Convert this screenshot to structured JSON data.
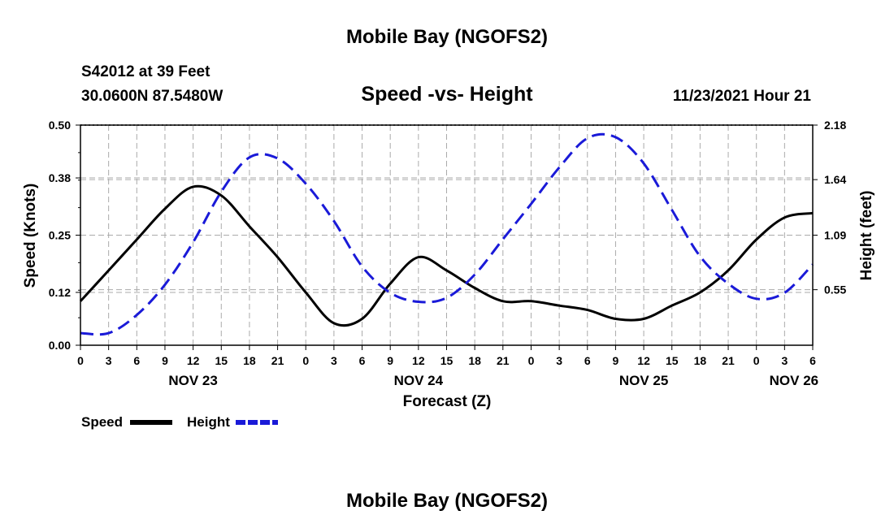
{
  "page": {
    "top_title": "Mobile Bay (NGOFS2)",
    "bottom_title": "Mobile Bay (NGOFS2)",
    "station": "S42012 at 39 Feet",
    "coords": "30.0600N  87.5480W",
    "timestamp": "11/23/2021 Hour 21"
  },
  "colors": {
    "speed": "#000000",
    "height": "#1a1ad8",
    "grid": "#aaaaaa"
  },
  "chart_data": {
    "type": "line",
    "title": "Speed -vs- Height",
    "xlabel": "Forecast (Z)",
    "ylabel": "Speed (Knots)",
    "y2label": "Height (feet)",
    "x_unit": "hours since NOV 23 00Z",
    "xlim": [
      0,
      78
    ],
    "ylim": [
      0,
      0.5
    ],
    "y2lim": [
      0,
      2.18
    ],
    "x_tick_labels": [
      "0",
      "3",
      "6",
      "9",
      "12",
      "15",
      "18",
      "21",
      "0",
      "3",
      "6",
      "9",
      "12",
      "15",
      "18",
      "21",
      "0",
      "3",
      "6",
      "9",
      "12",
      "15",
      "18",
      "21",
      "0",
      "3",
      "6"
    ],
    "y_ticks": [
      "0.00",
      "0.12",
      "0.25",
      "0.38",
      "0.50"
    ],
    "y2_ticks": [
      "0.55",
      "1.09",
      "1.64",
      "2.18"
    ],
    "day_labels": [
      {
        "hour": 12,
        "label": "NOV 23"
      },
      {
        "hour": 36,
        "label": "NOV 24"
      },
      {
        "hour": 60,
        "label": "NOV 25"
      },
      {
        "hour": 76,
        "label": "NOV 26"
      }
    ],
    "legend": [
      "Speed",
      "Height"
    ],
    "series": [
      {
        "name": "Speed",
        "axis": "left",
        "style": "solid",
        "x": [
          0,
          3,
          6,
          9,
          12,
          15,
          18,
          21,
          24,
          27,
          30,
          33,
          36,
          39,
          42,
          45,
          48,
          51,
          54,
          57,
          60,
          63,
          66,
          69,
          72,
          75,
          78
        ],
        "values": [
          0.1,
          0.17,
          0.24,
          0.31,
          0.36,
          0.34,
          0.27,
          0.2,
          0.12,
          0.05,
          0.06,
          0.14,
          0.2,
          0.17,
          0.13,
          0.1,
          0.1,
          0.09,
          0.08,
          0.06,
          0.06,
          0.09,
          0.12,
          0.17,
          0.24,
          0.29,
          0.3
        ]
      },
      {
        "name": "Height",
        "axis": "right",
        "style": "dashed",
        "x": [
          0,
          3,
          6,
          9,
          12,
          15,
          18,
          21,
          24,
          27,
          30,
          33,
          36,
          39,
          42,
          45,
          48,
          51,
          54,
          57,
          60,
          63,
          66,
          69,
          72,
          75,
          78
        ],
        "values": [
          0.12,
          0.12,
          0.3,
          0.6,
          1.02,
          1.52,
          1.86,
          1.85,
          1.6,
          1.23,
          0.78,
          0.52,
          0.43,
          0.47,
          0.7,
          1.05,
          1.4,
          1.76,
          2.05,
          2.06,
          1.8,
          1.34,
          0.88,
          0.61,
          0.46,
          0.52,
          0.8
        ]
      }
    ]
  }
}
